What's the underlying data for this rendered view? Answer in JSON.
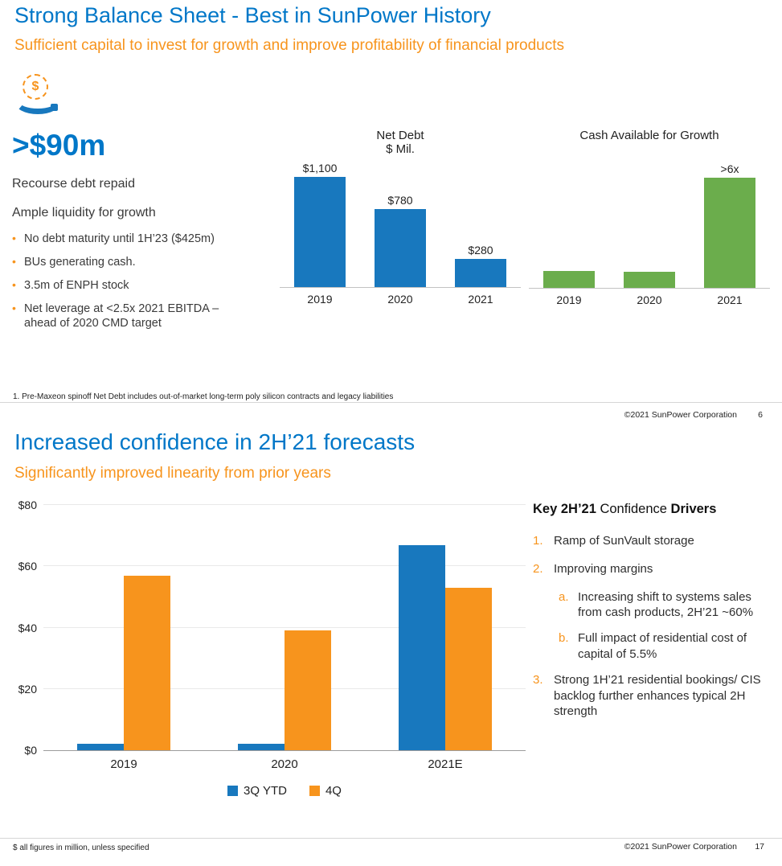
{
  "colors": {
    "title_blue": "#0077C8",
    "accent_orange": "#F7941D",
    "bar_blue": "#1878BE",
    "bar_green": "#6BAD4C"
  },
  "slide1": {
    "title": "Strong Balance Sheet - Best in SunPower History",
    "subtitle": "Sufficient capital to invest for growth and improve profitability of financial products",
    "left": {
      "headline": ">$90m",
      "line1": "Recourse debt repaid",
      "line2": "Ample liquidity for growth",
      "bullets": [
        "No debt maturity until 1H’23 ($425m)",
        "BUs generating cash.",
        "3.5m of ENPH stock",
        "Net leverage at <2.5x 2021 EBITDA – ahead of 2020 CMD target"
      ]
    },
    "footnote": "1. Pre-Maxeon spinoff Net Debt includes out-of-market long-term poly silicon contracts and legacy liabilities",
    "footer": {
      "copyright": "©2021 SunPower Corporation",
      "page": "6"
    }
  },
  "slide2": {
    "title": "Increased confidence in 2H’21 forecasts",
    "subtitle": "Significantly improved linearity from prior years",
    "drivers": {
      "heading_bold_1": "Key 2H’21 ",
      "heading_regular": "Confidence ",
      "heading_bold_2": "Drivers",
      "items": [
        {
          "marker": "1.",
          "level": 1,
          "text": "Ramp of SunVault storage"
        },
        {
          "marker": "2.",
          "level": 1,
          "text": "Improving margins"
        },
        {
          "marker": "a.",
          "level": 2,
          "text": "Increasing shift to systems sales from cash products, 2H’21 ~60%"
        },
        {
          "marker": "b.",
          "level": 2,
          "text": "Full impact of residential cost of capital of 5.5%"
        },
        {
          "marker": "3.",
          "level": 1,
          "text": "Strong 1H’21 residential bookings/ CIS backlog further enhances typical 2H strength"
        }
      ]
    },
    "footnote": "$ all figures in million, unless specified",
    "footer": {
      "copyright": "©2021 SunPower Corporation",
      "page": "17"
    }
  },
  "chart_data": [
    {
      "id": "net_debt",
      "type": "bar",
      "title": "Net Debt",
      "subtitle": "$ Mil.",
      "categories": [
        "2019",
        "2020",
        "2021"
      ],
      "values": [
        1100,
        780,
        280
      ],
      "value_labels": [
        "$1,100",
        "$780",
        "$280"
      ],
      "bar_color": "#1878BE",
      "ylim": [
        0,
        1200
      ],
      "grid": false,
      "legend_position": "none"
    },
    {
      "id": "cash_available_for_growth",
      "type": "bar",
      "title": "Cash Available for Growth",
      "subtitle": "",
      "categories": [
        "2019",
        "2020",
        "2021"
      ],
      "values": [
        1,
        0.95,
        6.4
      ],
      "value_labels": [
        "",
        "",
        ">6x"
      ],
      "note": "bar heights are relative; 2021 labeled >6x vs prior years",
      "bar_color": "#6BAD4C",
      "ylim": [
        0,
        7
      ],
      "grid": false,
      "legend_position": "none"
    },
    {
      "id": "quarterly_forecast",
      "type": "bar",
      "title": "",
      "categories": [
        "2019",
        "2020",
        "2021E"
      ],
      "series": [
        {
          "name": "3Q YTD",
          "color": "#1878BE",
          "values": [
            2,
            2,
            67
          ]
        },
        {
          "name": "4Q",
          "color": "#F7941D",
          "values": [
            57,
            39,
            53
          ]
        }
      ],
      "yticks": [
        0,
        20,
        40,
        60,
        80
      ],
      "ytick_labels": [
        "$0",
        "$20",
        "$40",
        "$60",
        "$80"
      ],
      "ylim": [
        0,
        80
      ],
      "grid": true,
      "legend_position": "bottom"
    }
  ]
}
